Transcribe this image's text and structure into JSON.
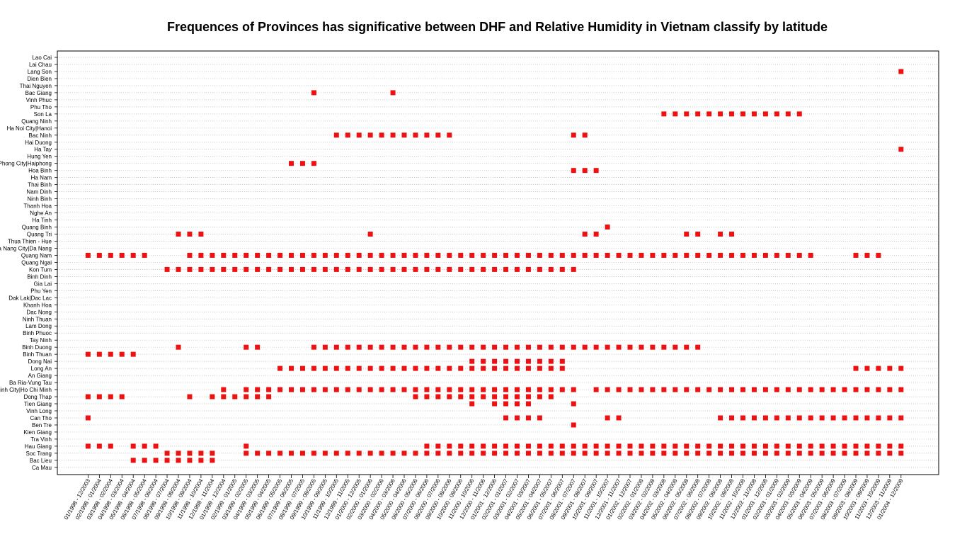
{
  "chart_data": {
    "type": "scatter",
    "title": "Frequences of Provinces has significative between DHF and Relative Humidity in Vietnam classify by latitude",
    "xlabel": "",
    "ylabel": "",
    "grid": "horizontal dotted",
    "marker_color": "#ee1111",
    "provinces": [
      "Lao Cai",
      "Lai Chau",
      "Lang Son",
      "Dien Bien",
      "Thai Nguyen",
      "Bac Giang",
      "Vinh Phuc",
      "Phu Tho",
      "Son La",
      "Quang Ninh",
      "Ha Noi City|Hanoi",
      "Bac Ninh",
      "Hai Duong",
      "Ha Tay",
      "Hung Yen",
      "Hai Phong City|Haiphong",
      "Hoa Binh",
      "Ha Nam",
      "Thai Binh",
      "Nam Dinh",
      "Ninh Binh",
      "Thanh Hoa",
      "Nghe An",
      "Ha Tinh",
      "Quang Binh",
      "Quang Tri",
      "Thua Thien - Hue",
      "Da Nang City|Da Nang",
      "Quang Nam",
      "Quang Ngai",
      "Kon Tum",
      "Binh Dinh",
      "Gia Lai",
      "Phu Yen",
      "Dak Lak|Dac Lac",
      "Khanh Hoa",
      "Dac Nong",
      "Ninh Thuan",
      "Lam Dong",
      "Binh Phuoc",
      "Tay Ninh",
      "Binh Duong",
      "Binh Thuan",
      "Dong Nai",
      "Long An",
      "An Giang",
      "Ba Ria-Vung Tau",
      "Ho Chi Minh City|Ho Chi Minh",
      "Dong Thap",
      "Tien Giang",
      "Vinh Long",
      "Can Tho",
      "Ben Tre",
      "Kien Giang",
      "Tra Vinh",
      "Hau Giang",
      "Soc Trang",
      "Bac Lieu",
      "Ca Mau"
    ],
    "periods": [
      "01/1998 - 12/2003",
      "02/1998 - 01/2004",
      "03/1998 - 02/2004",
      "04/1998 - 03/2004",
      "05/1998 - 04/2004",
      "06/1998 - 05/2004",
      "07/1998 - 06/2004",
      "08/1998 - 07/2004",
      "09/1998 - 08/2004",
      "10/1998 - 09/2004",
      "11/1998 - 10/2004",
      "12/1998 - 11/2004",
      "01/1999 - 12/2004",
      "02/1999 - 01/2005",
      "03/1999 - 02/2005",
      "04/1999 - 03/2005",
      "05/1999 - 04/2005",
      "06/1999 - 05/2005",
      "07/1999 - 06/2005",
      "08/1999 - 07/2005",
      "09/1999 - 08/2005",
      "10/1999 - 09/2005",
      "11/1999 - 10/2005",
      "12/1999 - 11/2005",
      "01/2000 - 12/2005",
      "02/2000 - 01/2006",
      "03/2000 - 02/2006",
      "04/2000 - 03/2006",
      "05/2000 - 04/2006",
      "06/2000 - 05/2006",
      "07/2000 - 06/2006",
      "08/2000 - 07/2006",
      "09/2000 - 08/2006",
      "10/2000 - 09/2006",
      "11/2000 - 10/2006",
      "12/2000 - 11/2006",
      "01/2001 - 12/2006",
      "02/2001 - 01/2007",
      "03/2001 - 02/2007",
      "04/2001 - 03/2007",
      "05/2001 - 04/2007",
      "06/2001 - 05/2007",
      "07/2001 - 06/2007",
      "08/2001 - 07/2007",
      "09/2001 - 08/2007",
      "10/2001 - 09/2007",
      "11/2001 - 10/2007",
      "12/2001 - 11/2007",
      "01/2002 - 12/2007",
      "02/2002 - 01/2008",
      "03/2002 - 02/2008",
      "04/2002 - 03/2008",
      "05/2002 - 04/2008",
      "06/2002 - 05/2008",
      "07/2002 - 06/2008",
      "08/2002 - 07/2008",
      "09/2002 - 08/2008",
      "10/2002 - 09/2008",
      "11/2002 - 10/2008",
      "12/2002 - 11/2008",
      "01/2003 - 12/2008",
      "02/2003 - 01/2009",
      "03/2003 - 02/2009",
      "04/2003 - 03/2009",
      "05/2003 - 04/2009",
      "06/2003 - 05/2009",
      "07/2003 - 06/2009",
      "08/2003 - 07/2009",
      "09/2003 - 08/2009",
      "10/2003 - 09/2009",
      "11/2003 - 10/2009",
      "12/2003 - 11/2009",
      "01/2004 - 12/2009"
    ],
    "x_tick_labels": [
      "01/1998 - 12/2003",
      "02/1998 - 01/2004",
      "03/1998 - 02/2004",
      "04/1998 - 03/2004",
      "05/1998 - 04/2004",
      "06/1998 - 05/2004",
      "07/1998 - 06/2004",
      "08/1998 - 07/2004",
      "09/1998 - 08/2004",
      "10/1998 - 09/2004",
      "11/1998 - 10/2004",
      "12/1998 - 11/2004",
      "01/1999 - 12/2004",
      "02/1999 - 01/2005",
      "03/1999 - 02/2005",
      "04/1999 - 03/2005",
      "05/1999 - 04/2005",
      "06/1999 - 05/2005",
      "07/1999 - 06/2005",
      "08/1999 - 07/2005",
      "09/1999 - 08/2005",
      "10/1999 - 09/2005",
      "11/1999 - 10/2005",
      "12/1999 - 11/2005",
      "01/2000 - 12/2005",
      "02/2000 - 01/2006",
      "03/2000 - 02/2006",
      "04/2000 - 03/2006",
      "05/2000 - 04/2006",
      "06/2000 - 05/2006",
      "07/2000 - 06/2006",
      "08/2000 - 07/2006",
      "09/2000 - 08/2006",
      "10/2000 - 09/2006",
      "11/2000 - 10/2006",
      "12/2000 - 11/2006",
      "01/2001 - 12/2006",
      "02/2001 - 01/2007",
      "03/2001 - 02/2007",
      "04/2001 - 03/2007",
      "05/2001 - 04/2007",
      "06/2001 - 05/2007",
      "07/2001 - 06/2007",
      "08/2001 - 07/2007",
      "09/2001 - 08/2007",
      "10/2001 - 09/2007",
      "11/2001 - 10/2007",
      "12/2001 - 11/2007",
      "01/2002 - 12/2007",
      "02/2002 - 01/2008",
      "03/2002 - 02/2008",
      "04/2002 - 03/2008",
      "05/2002 - 04/2008",
      "06/2002 - 05/2008",
      "07/2002 - 06/2008",
      "08/2002 - 07/2008",
      "09/2002 - 08/2008",
      "10/2002 - 09/2008",
      "11/2002 - 10/2008",
      "12/2002 - 11/2008",
      "01/2003 - 12/2008",
      "02/2003 - 01/2009",
      "03/2003 - 02/2009",
      "04/2003 - 03/2009",
      "05/2003 - 04/2009",
      "06/2003 - 05/2009",
      "07/2003 - 06/2009",
      "08/2003 - 07/2009",
      "09/2003 - 08/2009",
      "10/2003 - 09/2009",
      "11/2003 - 10/2009",
      "12/2003 - 11/2009",
      "01/2004 - 12/2009"
    ],
    "points": {
      "Lang Son": [
        [
          72,
          72
        ]
      ],
      "Bac Giang": [
        [
          20,
          20
        ],
        [
          27,
          27
        ]
      ],
      "Son La": [
        [
          51,
          63
        ]
      ],
      "Bac Ninh": [
        [
          22,
          32
        ],
        [
          43,
          44
        ]
      ],
      "Ha Tay": [
        [
          72,
          72
        ]
      ],
      "Hai Phong City|Haiphong": [
        [
          18,
          20
        ]
      ],
      "Hoa Binh": [
        [
          43,
          45
        ]
      ],
      "Quang Binh": [
        [
          46,
          46
        ]
      ],
      "Quang Tri": [
        [
          8,
          10
        ],
        [
          25,
          25
        ],
        [
          44,
          45
        ],
        [
          53,
          54
        ],
        [
          56,
          57
        ]
      ],
      "Quang Nam": [
        [
          0,
          5
        ],
        [
          9,
          64
        ],
        [
          68,
          70
        ]
      ],
      "Kon Tum": [
        [
          7,
          43
        ]
      ],
      "Binh Duong": [
        [
          8,
          8
        ],
        [
          14,
          15
        ],
        [
          20,
          54
        ]
      ],
      "Binh Thuan": [
        [
          0,
          4
        ]
      ],
      "Dong Nai": [
        [
          34,
          42
        ]
      ],
      "Long An": [
        [
          17,
          42
        ],
        [
          68,
          72
        ]
      ],
      "Ho Chi Minh City|Ho Chi Minh": [
        [
          12,
          12
        ],
        [
          14,
          43
        ],
        [
          45,
          72
        ]
      ],
      "Dong Thap": [
        [
          0,
          3
        ],
        [
          9,
          9
        ],
        [
          11,
          16
        ],
        [
          29,
          41
        ]
      ],
      "Tien Giang": [
        [
          34,
          34
        ],
        [
          36,
          39
        ],
        [
          43,
          43
        ]
      ],
      "Can Tho": [
        [
          0,
          0
        ],
        [
          37,
          40
        ],
        [
          46,
          47
        ],
        [
          56,
          72
        ]
      ],
      "Ben Tre": [
        [
          43,
          43
        ]
      ],
      "Hau Giang": [
        [
          0,
          2
        ],
        [
          4,
          6
        ],
        [
          14,
          14
        ],
        [
          30,
          72
        ]
      ],
      "Soc Trang": [
        [
          7,
          11
        ],
        [
          14,
          72
        ]
      ],
      "Bac Lieu": [
        [
          4,
          11
        ]
      ]
    }
  }
}
